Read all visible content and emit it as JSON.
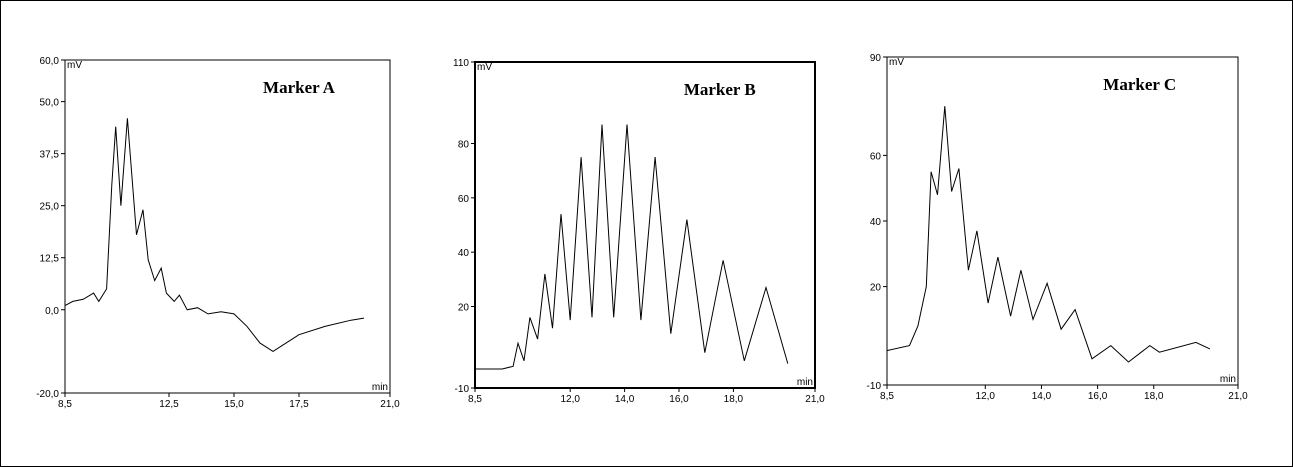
{
  "chart_data": [
    {
      "type": "line",
      "title": "Marker A",
      "xlabel": "min",
      "ylabel": "mV",
      "color": "#000000",
      "xlim": [
        8.5,
        21
      ],
      "ylim": [
        -20,
        60
      ],
      "xticks": [
        {
          "value": 8.5,
          "label": "8,5"
        },
        {
          "value": 12.5,
          "label": "12,5"
        },
        {
          "value": 15,
          "label": "15,0"
        },
        {
          "value": 17.5,
          "label": "17,5"
        },
        {
          "value": 21,
          "label": "21,0"
        }
      ],
      "yticks": [
        {
          "value": -20,
          "label": "-20,0"
        },
        {
          "value": 0,
          "label": "0,0"
        },
        {
          "value": 12.5,
          "label": "12,5"
        },
        {
          "value": 25,
          "label": "25,0"
        },
        {
          "value": 37.5,
          "label": "37,5"
        },
        {
          "value": 50,
          "label": "50,0"
        },
        {
          "value": 60,
          "label": "60,0"
        }
      ],
      "x": [
        8.5,
        8.8,
        9.2,
        9.6,
        9.8,
        10.1,
        10.3,
        10.45,
        10.65,
        10.9,
        11.1,
        11.25,
        11.5,
        11.7,
        11.95,
        12.2,
        12.4,
        12.7,
        12.9,
        13.2,
        13.6,
        14.0,
        14.5,
        15.0,
        15.5,
        16.0,
        16.5,
        17.0,
        17.5,
        18.5,
        19.5,
        20.0
      ],
      "values": [
        1,
        2,
        2.5,
        4,
        2,
        5,
        30,
        44,
        25,
        46,
        30,
        18,
        24,
        12,
        7,
        10,
        4,
        2,
        3.5,
        0,
        0.5,
        -1,
        -0.5,
        -1,
        -4,
        -8,
        -10,
        -8,
        -6,
        -4,
        -2.5,
        -2
      ]
    },
    {
      "type": "line",
      "title": "Marker B",
      "xlabel": "min",
      "ylabel": "mV",
      "color": "#000000",
      "xlim": [
        8.5,
        21
      ],
      "ylim": [
        -10,
        110
      ],
      "xticks": [
        {
          "value": 8.5,
          "label": "8,5"
        },
        {
          "value": 12,
          "label": "12,0"
        },
        {
          "value": 14,
          "label": "14,0"
        },
        {
          "value": 16,
          "label": "16,0"
        },
        {
          "value": 18,
          "label": "18,0"
        },
        {
          "value": 21,
          "label": "21,0"
        }
      ],
      "yticks": [
        -10,
        20,
        40,
        60,
        80,
        110
      ],
      "x": [
        8.5,
        9.5,
        9.9,
        10.08,
        10.3,
        10.52,
        10.8,
        11.07,
        11.35,
        11.66,
        12.0,
        12.4,
        12.8,
        13.17,
        13.6,
        14.09,
        14.6,
        15.12,
        15.7,
        16.29,
        16.95,
        17.62,
        18.4,
        19.2,
        20.0
      ],
      "values": [
        -3,
        -3,
        -2,
        6.5,
        0,
        16,
        8,
        32,
        12,
        54,
        15,
        75,
        16,
        87,
        16,
        87,
        15,
        75,
        10,
        52,
        3,
        37,
        0,
        27,
        -1
      ]
    },
    {
      "type": "line",
      "title": "Marker C",
      "xlabel": "min",
      "ylabel": "mV",
      "color": "#000000",
      "xlim": [
        8.5,
        21
      ],
      "ylim": [
        -10,
        90
      ],
      "xticks": [
        {
          "value": 8.5,
          "label": "8,5"
        },
        {
          "value": 12,
          "label": "12,0"
        },
        {
          "value": 14,
          "label": "14,0"
        },
        {
          "value": 16,
          "label": "16,0"
        },
        {
          "value": 18,
          "label": "18,0"
        },
        {
          "value": 21,
          "label": "21,0"
        }
      ],
      "yticks": [
        -10,
        20,
        40,
        60,
        90
      ],
      "x": [
        8.5,
        9.3,
        9.6,
        9.9,
        10.07,
        10.3,
        10.56,
        10.8,
        11.06,
        11.4,
        11.7,
        12.1,
        12.45,
        12.9,
        13.27,
        13.7,
        14.2,
        14.7,
        15.2,
        15.8,
        16.47,
        17.1,
        17.86,
        18.2,
        19.5,
        20.0
      ],
      "values": [
        0.5,
        2,
        8,
        20,
        55,
        48,
        75,
        49,
        56,
        25,
        37,
        15,
        29,
        11,
        25,
        10,
        21,
        7,
        13,
        -2,
        2,
        -3,
        2,
        0,
        3,
        1
      ]
    }
  ]
}
